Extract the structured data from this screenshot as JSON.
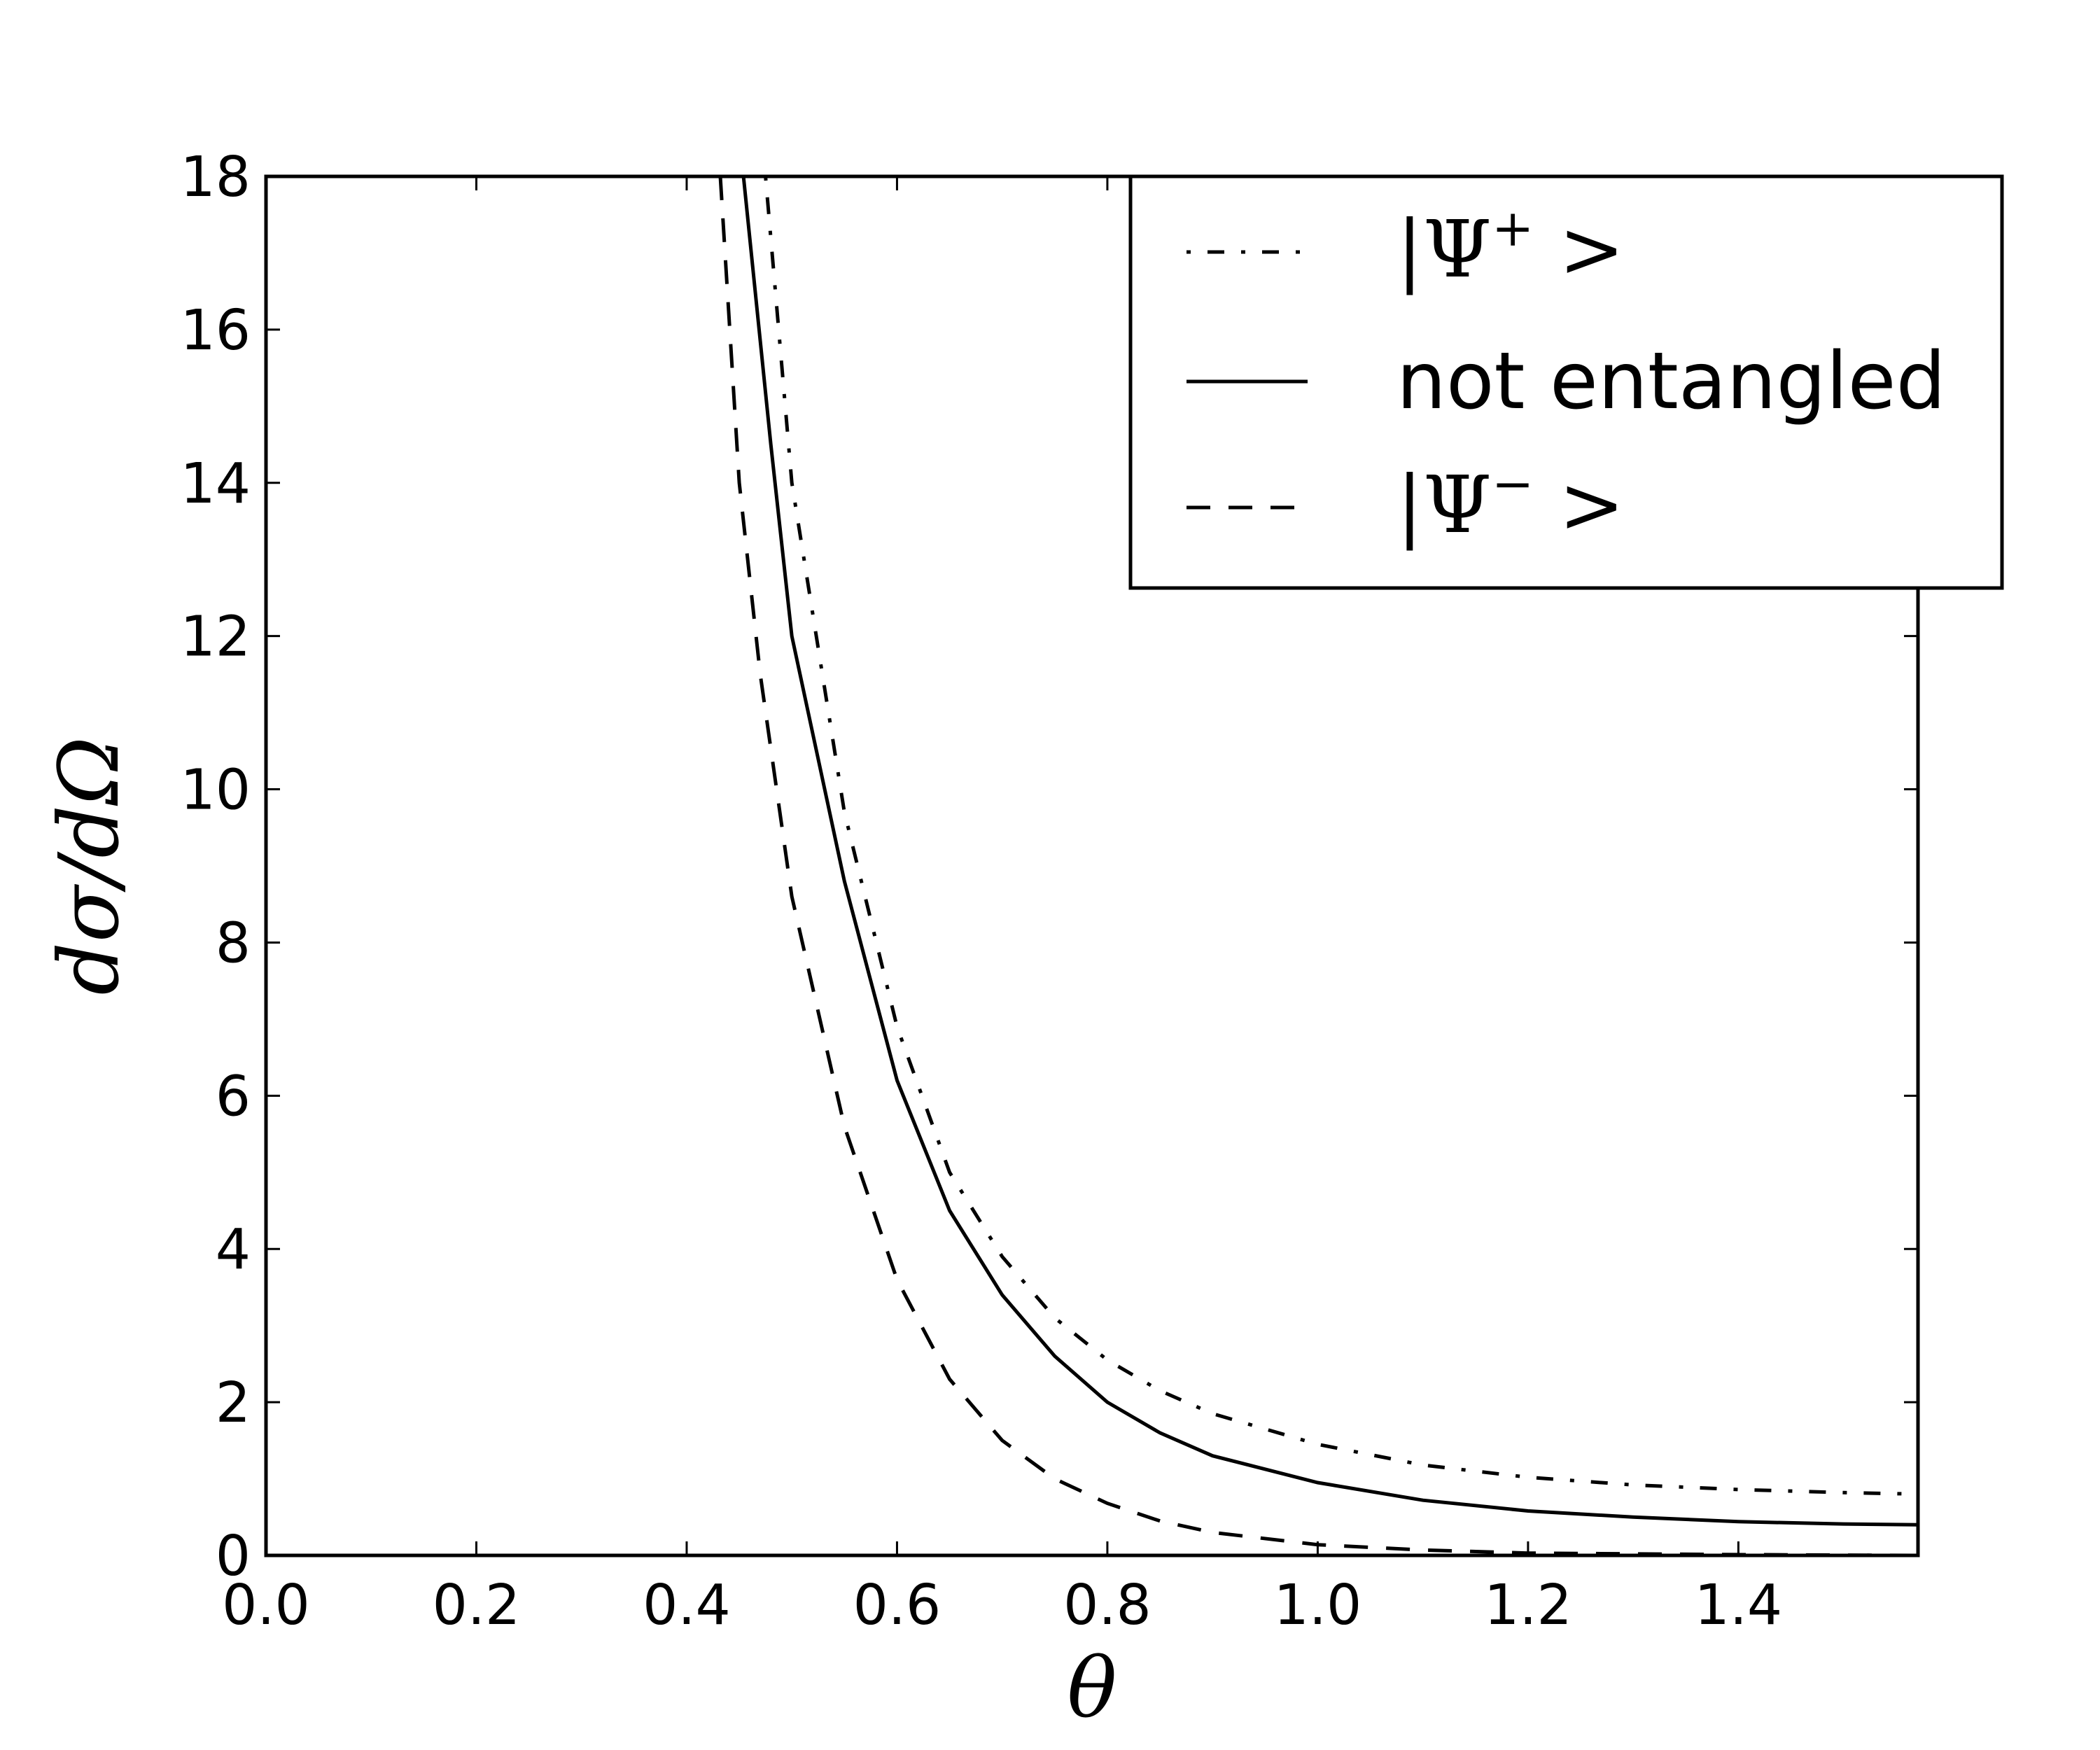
{
  "chart_data": {
    "type": "line",
    "xlabel": "θ",
    "ylabel": "dσ/dΩ",
    "xlim": [
      0.0,
      1.5708
    ],
    "ylim": [
      0,
      18
    ],
    "x_ticks": [
      "0.0",
      "0.2",
      "0.4",
      "0.6",
      "0.8",
      "1.0",
      "1.2",
      "1.4"
    ],
    "y_ticks": [
      "0",
      "2",
      "4",
      "6",
      "8",
      "10",
      "12",
      "14",
      "16",
      "18"
    ],
    "grid": false,
    "legend_position": "top-right",
    "legend": [
      {
        "label_main": "|Ψ",
        "label_sup": "+",
        "label_end": " >",
        "style": "dashdot"
      },
      {
        "label": "not entangled",
        "style": "solid"
      },
      {
        "label_main": "|Ψ",
        "label_sup": "−",
        "label_end": " >",
        "style": "dashed"
      }
    ],
    "series": [
      {
        "style": "dashdot",
        "x": [
          0.475,
          0.5,
          0.55,
          0.6,
          0.65,
          0.7,
          0.75,
          0.8,
          0.85,
          0.9,
          1.0,
          1.1,
          1.2,
          1.3,
          1.4,
          1.5,
          1.5708
        ],
        "y": [
          18.0,
          14.0,
          9.7,
          6.9,
          5.0,
          3.9,
          3.1,
          2.55,
          2.15,
          1.85,
          1.45,
          1.18,
          1.02,
          0.92,
          0.86,
          0.82,
          0.8
        ]
      },
      {
        "style": "solid",
        "x": [
          0.454,
          0.48,
          0.5,
          0.55,
          0.6,
          0.65,
          0.7,
          0.75,
          0.8,
          0.85,
          0.9,
          1.0,
          1.1,
          1.2,
          1.3,
          1.4,
          1.5,
          1.5708
        ],
        "y": [
          18.0,
          14.5,
          12.0,
          8.8,
          6.2,
          4.5,
          3.4,
          2.6,
          2.0,
          1.6,
          1.3,
          0.95,
          0.72,
          0.58,
          0.5,
          0.44,
          0.41,
          0.4
        ]
      },
      {
        "style": "dashed",
        "x": [
          0.432,
          0.45,
          0.47,
          0.5,
          0.55,
          0.6,
          0.65,
          0.7,
          0.75,
          0.8,
          0.85,
          0.9,
          1.0,
          1.1,
          1.2,
          1.3,
          1.4,
          1.5708
        ],
        "y": [
          18.0,
          14.0,
          11.5,
          8.6,
          5.6,
          3.6,
          2.3,
          1.5,
          1.0,
          0.68,
          0.45,
          0.3,
          0.14,
          0.07,
          0.03,
          0.02,
          0.01,
          0.0
        ]
      }
    ]
  }
}
